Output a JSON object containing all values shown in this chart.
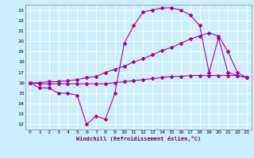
{
  "xlabel": "Windchill (Refroidissement éolien,°C)",
  "bg_color": "#cceeff",
  "line_color": "#aa00aa",
  "xmin": -0.5,
  "xmax": 23.5,
  "ymin": 11.5,
  "ymax": 23.5,
  "yticks": [
    12,
    13,
    14,
    15,
    16,
    17,
    18,
    19,
    20,
    21,
    22,
    23
  ],
  "xticks": [
    0,
    1,
    2,
    3,
    4,
    5,
    6,
    7,
    8,
    9,
    10,
    11,
    12,
    13,
    14,
    15,
    16,
    17,
    18,
    19,
    20,
    21,
    22,
    23
  ],
  "line1_x": [
    0,
    1,
    2,
    3,
    4,
    5,
    6,
    7,
    8,
    9,
    10,
    11,
    12,
    13,
    14,
    15,
    16,
    17,
    18,
    19,
    20,
    21,
    22,
    23
  ],
  "line1_y": [
    16.0,
    15.5,
    15.5,
    15.0,
    15.0,
    14.8,
    12.0,
    12.8,
    12.5,
    15.0,
    19.8,
    21.5,
    22.8,
    23.0,
    23.2,
    23.2,
    23.0,
    22.5,
    21.5,
    17.0,
    20.3,
    17.0,
    16.7,
    16.5
  ],
  "line2_x": [
    0,
    1,
    2,
    3,
    4,
    5,
    6,
    7,
    8,
    9,
    10,
    11,
    12,
    13,
    14,
    15,
    16,
    17,
    18,
    19,
    20,
    21,
    22,
    23
  ],
  "line2_y": [
    16.0,
    15.9,
    15.9,
    15.9,
    15.9,
    15.9,
    15.9,
    15.9,
    15.9,
    16.0,
    16.1,
    16.2,
    16.3,
    16.4,
    16.5,
    16.6,
    16.6,
    16.7,
    16.7,
    16.7,
    16.7,
    16.7,
    16.7,
    16.5
  ],
  "line3_x": [
    0,
    1,
    2,
    3,
    4,
    5,
    6,
    7,
    8,
    9,
    10,
    11,
    12,
    13,
    14,
    15,
    16,
    17,
    18,
    19,
    20,
    21,
    22,
    23
  ],
  "line3_y": [
    16.0,
    16.0,
    16.1,
    16.1,
    16.2,
    16.3,
    16.5,
    16.6,
    17.0,
    17.3,
    17.6,
    18.0,
    18.3,
    18.7,
    19.1,
    19.4,
    19.8,
    20.2,
    20.5,
    20.8,
    20.5,
    19.0,
    17.0,
    16.5
  ]
}
